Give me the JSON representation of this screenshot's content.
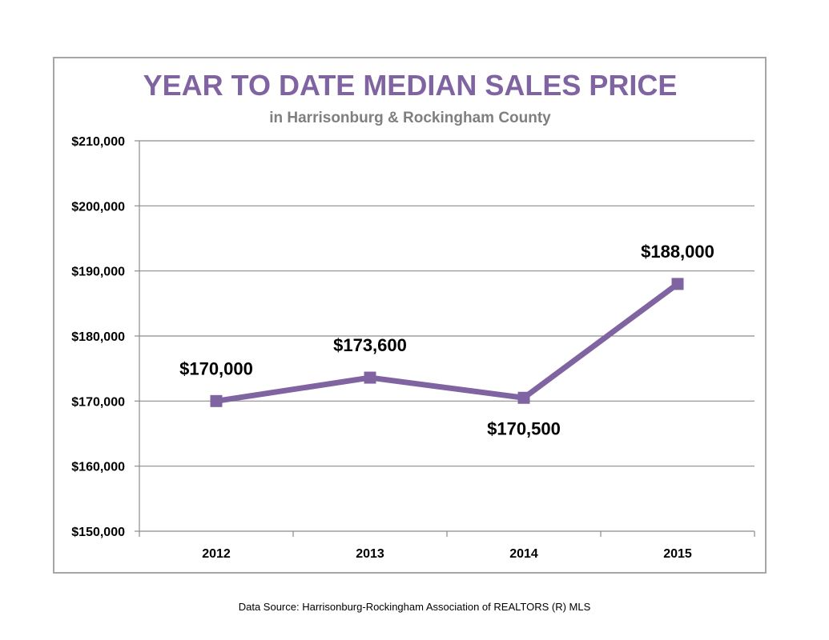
{
  "chart_data": {
    "type": "line",
    "title": "YEAR TO DATE MEDIAN SALES PRICE",
    "subtitle": "in Harrisonburg  & Rockingham County",
    "categories": [
      "2012",
      "2013",
      "2014",
      "2015"
    ],
    "series": [
      {
        "values": [
          170000,
          173600,
          170500,
          188000
        ]
      }
    ],
    "data_labels": [
      "$170,000",
      "$173,600",
      "$170,500",
      "$188,000"
    ],
    "ylim": [
      150000,
      210000
    ],
    "y_ticks": [
      150000,
      160000,
      170000,
      180000,
      190000,
      200000,
      210000
    ],
    "y_tick_labels": [
      "$150,000",
      "$160,000",
      "$170,000",
      "$180,000",
      "$190,000",
      "$200,000",
      "$210,000"
    ],
    "xlabel": "",
    "ylabel": "",
    "grid": true,
    "legend": "none",
    "colors": {
      "line": "#8064a2",
      "title": "#8064a2",
      "subtitle": "#7f7f7f",
      "grid": "#8c8c8c",
      "frame": "#a6a6a6"
    }
  },
  "footer": {
    "source": "Data Source: Harrisonburg-Rockingham Association of REALTORS (R) MLS"
  }
}
